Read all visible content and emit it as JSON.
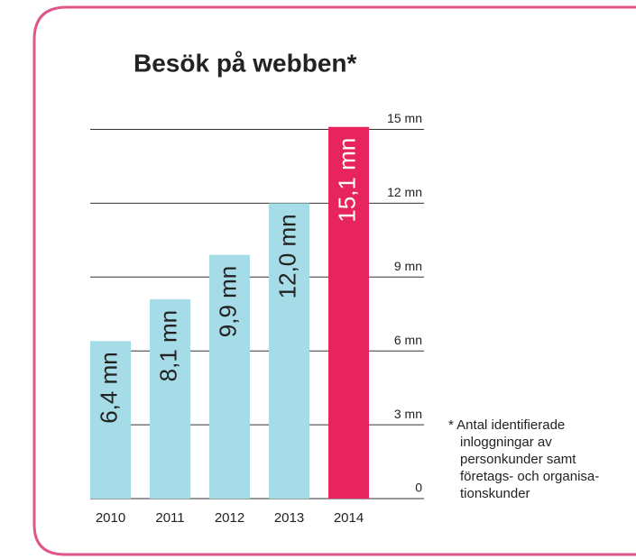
{
  "chart_data": {
    "type": "bar",
    "title": "Besök på webben*",
    "categories": [
      "2010",
      "2011",
      "2012",
      "2013",
      "2014"
    ],
    "values": [
      6.4,
      8.1,
      9.9,
      12.0,
      15.1
    ],
    "value_labels": [
      "6,4 mn",
      "8,1 mn",
      "9,9 mn",
      "12,0 mn",
      "15,1 mn"
    ],
    "colors": [
      "#a6dce8",
      "#a6dce8",
      "#a6dce8",
      "#a6dce8",
      "#e8245f"
    ],
    "ylim": [
      0,
      15.5
    ],
    "yticks": [
      0,
      {
        "value": 3,
        "label": "3 mn"
      },
      {
        "value": 6,
        "label": "6 mn"
      },
      {
        "value": 9,
        "label": "9 mn"
      },
      {
        "value": 12,
        "label": "12 mn"
      },
      {
        "value": 15,
        "label": "15 mn"
      }
    ],
    "grid": true,
    "footnote": [
      "* Antal identifierade",
      "inloggningar av",
      "personkunder samt",
      "företags- och organisa-",
      "tionskunder"
    ]
  }
}
